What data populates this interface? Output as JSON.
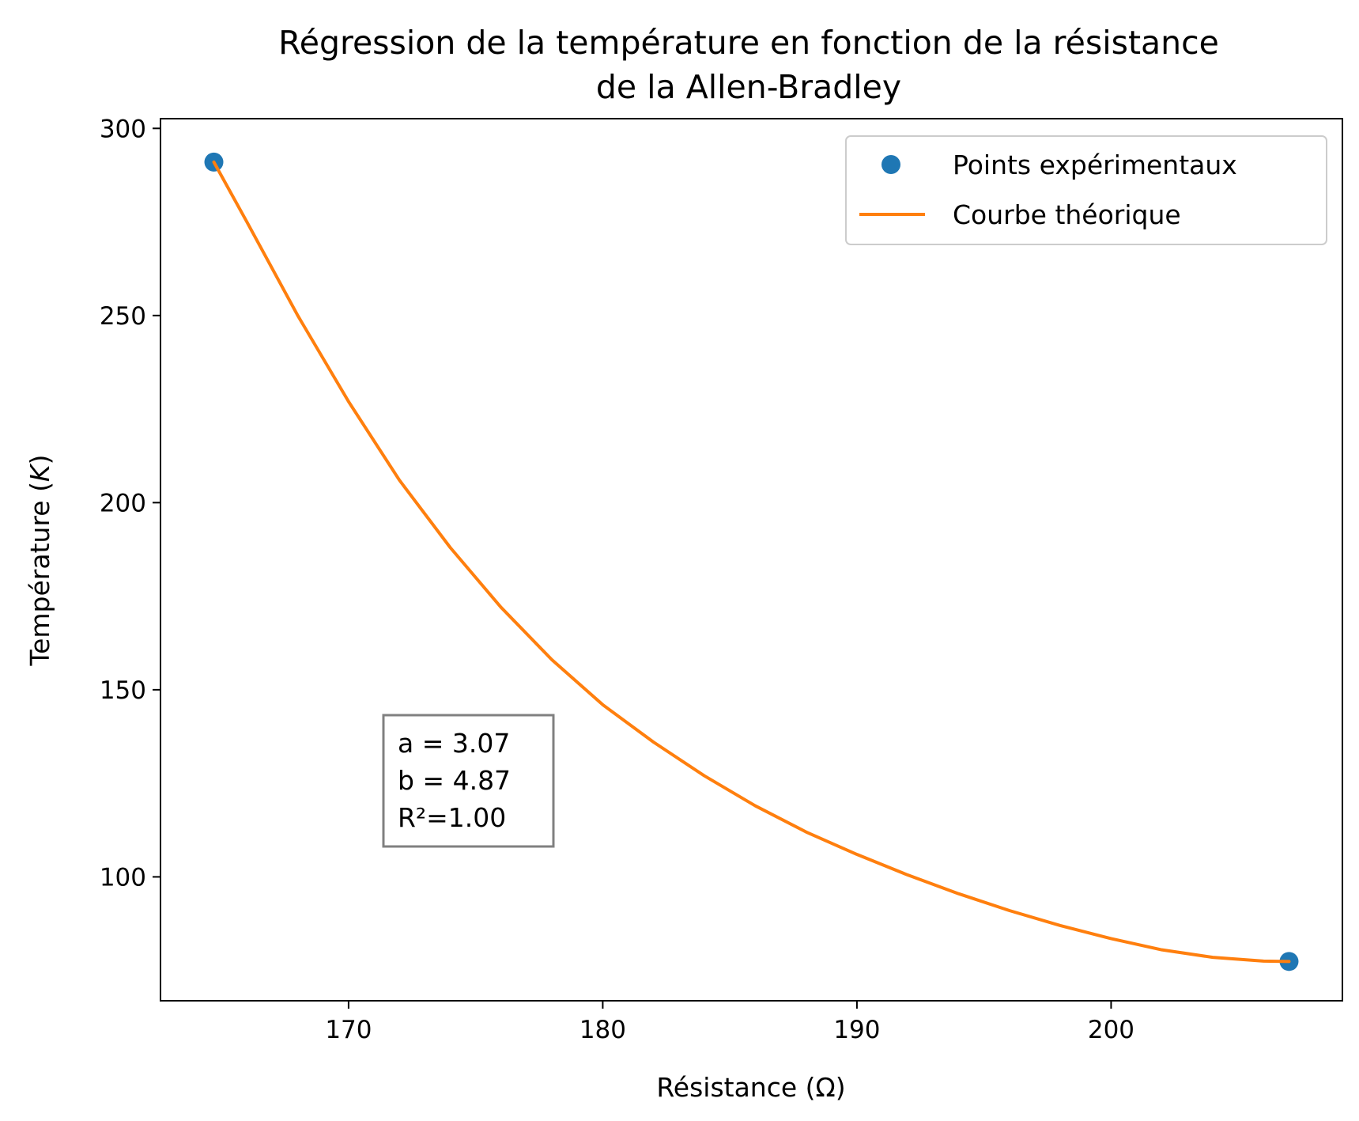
{
  "chart_data": {
    "type": "line",
    "title": [
      "Régression de la température en fonction de la résistance",
      "de la Allen-Bradley"
    ],
    "xlabel": "Résistance (Ω)",
    "ylabel_main": "Température (",
    "ylabel_unit": "K",
    "ylabel_close": ")",
    "xlim": [
      162.6,
      209.1
    ],
    "ylim": [
      66.9,
      302.6
    ],
    "x_ticks": [
      170,
      180,
      190,
      200
    ],
    "x_tick_labels": [
      "170",
      "180",
      "190",
      "200"
    ],
    "y_ticks": [
      100,
      150,
      200,
      250,
      300
    ],
    "y_tick_labels": [
      "100",
      "150",
      "200",
      "250",
      "300"
    ],
    "grid": false,
    "legend": {
      "position": "top-right",
      "entries": [
        "Points expérimentaux",
        "Courbe théorique"
      ]
    },
    "series": [
      {
        "name": "Points expérimentaux",
        "kind": "scatter",
        "color": "#1f77b4",
        "x": [
          164.7,
          207.0
        ],
        "y": [
          291.0,
          77.4
        ]
      },
      {
        "name": "Courbe théorique",
        "kind": "line",
        "color": "#ff7f0e",
        "x": [
          164.7,
          166.0,
          168.0,
          170.0,
          172.0,
          174.0,
          176.0,
          178.0,
          180.0,
          182.0,
          184.0,
          186.0,
          188.0,
          190.0,
          192.0,
          194.0,
          196.0,
          198.0,
          200.0,
          202.0,
          204.0,
          206.0,
          207.0
        ],
        "y": [
          291.0,
          275.0,
          250.0,
          227.0,
          206.0,
          188.0,
          172.0,
          158.0,
          146.0,
          136.0,
          127.0,
          119.0,
          112.0,
          106.0,
          100.5,
          95.5,
          91.0,
          87.0,
          83.5,
          80.5,
          78.5,
          77.5,
          77.4
        ]
      }
    ],
    "annotation": {
      "lines": [
        "a = 3.07",
        "b = 4.87",
        "R²=1.00"
      ]
    }
  }
}
